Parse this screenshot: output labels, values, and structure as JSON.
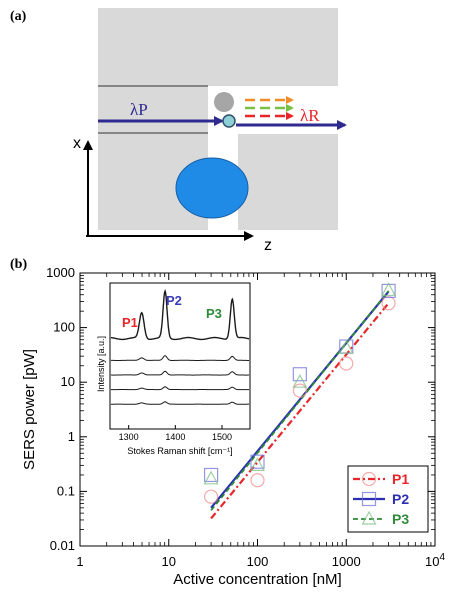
{
  "panels": {
    "a_label": "(a)",
    "b_label": "(b)"
  },
  "schematic": {
    "pump_label": "λP",
    "raman_label": "λR",
    "x_axis_letter": "x",
    "z_axis_letter": "z",
    "colors": {
      "block": "#d9d9d9",
      "pump_arrow": "#2e2a8f",
      "particle": "#1f8be6",
      "raman_arrows": [
        "#f28c28",
        "#7ac143",
        "#e8262a"
      ],
      "dot_grey": "#a6a6a6",
      "dot_small": "#8fd0d6"
    }
  },
  "chart_data": [
    {
      "type": "scatter",
      "xlabel": "Active concentration [nM]",
      "ylabel": "SERS power [pW]",
      "xscale": "log",
      "yscale": "log",
      "xlim": [
        1,
        10000
      ],
      "ylim": [
        0.01,
        1000
      ],
      "x_ticks": [
        "1",
        "10",
        "100",
        "1000",
        "10^4"
      ],
      "y_ticks": [
        "0.01",
        "0.1",
        "1",
        "10",
        "100",
        "1000"
      ],
      "legend_position": "bottom-right",
      "series": [
        {
          "name": "P1",
          "color": "#e8262a",
          "marker": "circle",
          "line": "dash-dot",
          "x": [
            30,
            100,
            300,
            1000,
            3000
          ],
          "y": [
            0.08,
            0.16,
            7,
            22,
            280
          ],
          "fit_x": [
            30,
            3000
          ],
          "fit_y": [
            0.032,
            280
          ]
        },
        {
          "name": "P2",
          "color": "#2b2fb0",
          "marker": "square",
          "line": "solid",
          "x": [
            30,
            100,
            300,
            1000,
            3000
          ],
          "y": [
            0.2,
            0.35,
            14,
            45,
            470
          ],
          "fit_x": [
            30,
            3000
          ],
          "fit_y": [
            0.05,
            460
          ]
        },
        {
          "name": "P3",
          "color": "#2e8b3a",
          "marker": "triangle",
          "line": "dotted",
          "x": [
            30,
            100,
            300,
            1000,
            3000
          ],
          "y": [
            0.17,
            0.3,
            10,
            42,
            480
          ],
          "fit_x": [
            30,
            3000
          ],
          "fit_y": [
            0.045,
            470
          ]
        }
      ]
    },
    {
      "type": "line",
      "xlabel": "Stokes Raman shift [cm⁻¹]",
      "ylabel": "Intensity [a.u.]",
      "xlim": [
        1260,
        1560
      ],
      "x_ticks": [
        "1300",
        "1400",
        "1500"
      ],
      "peak_labels": [
        {
          "text": "P1",
          "color": "#e8262a"
        },
        {
          "text": "P2",
          "color": "#3b3bb8"
        },
        {
          "text": "P3",
          "color": "#2e8b3a"
        }
      ],
      "peaks": [
        {
          "position": 1328,
          "height": 0.55,
          "width": 7
        },
        {
          "position": 1378,
          "height": 1.0,
          "width": 6
        },
        {
          "position": 1522,
          "height": 0.85,
          "width": 6
        }
      ],
      "traces": [
        {
          "offset": 0.62,
          "scale": 1.0
        },
        {
          "offset": 0.47,
          "scale": 0.1
        },
        {
          "offset": 0.37,
          "scale": 0.08
        },
        {
          "offset": 0.27,
          "scale": 0.06
        },
        {
          "offset": 0.17,
          "scale": 0.05
        }
      ]
    }
  ]
}
